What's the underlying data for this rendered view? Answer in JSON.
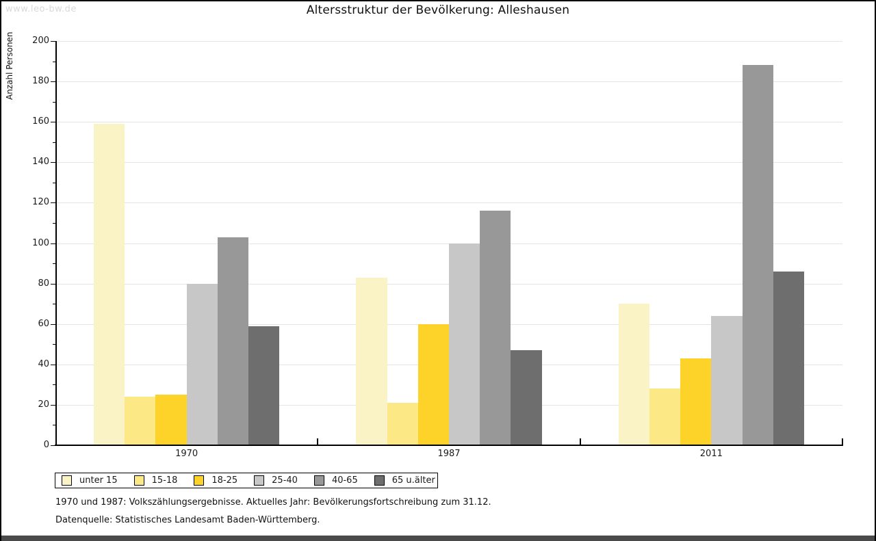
{
  "watermark": "www.leo-bw.de",
  "title": "Altersstruktur der Bevölkerung: Alleshausen",
  "chart_data": {
    "type": "bar",
    "title": "Altersstruktur der Bevölkerung: Alleshausen",
    "xlabel": "",
    "ylabel": "Anzahl Personen",
    "ylim": [
      0,
      200
    ],
    "ytick_step": 20,
    "yminor_step": 10,
    "grid": true,
    "legend_position": "bottom-left",
    "categories": [
      "1970",
      "1987",
      "2011"
    ],
    "y_tick_labels": [
      "0",
      "20",
      "40",
      "60",
      "80",
      "100",
      "120",
      "140",
      "160",
      "180",
      "200"
    ],
    "series": [
      {
        "name": "unter 15",
        "color": "#FAF3C5",
        "values": [
          159,
          83,
          70
        ]
      },
      {
        "name": "15-18",
        "color": "#FCE884",
        "values": [
          24,
          21,
          28
        ]
      },
      {
        "name": "18-25",
        "color": "#FDD32A",
        "values": [
          25,
          60,
          43
        ]
      },
      {
        "name": "25-40",
        "color": "#C7C7C7",
        "values": [
          80,
          100,
          64
        ]
      },
      {
        "name": "40-65",
        "color": "#989898",
        "values": [
          103,
          116,
          188
        ]
      },
      {
        "name": "65 u.älter",
        "color": "#6E6E6E",
        "values": [
          59,
          47,
          86
        ]
      }
    ]
  },
  "footer": {
    "line1": "1970 und 1987: Volkszählungsergebnisse. Aktuelles Jahr: Bevölkerungsfortschreibung zum 31.12.",
    "line2": "Datenquelle: Statistisches Landesamt Baden-Württemberg."
  }
}
